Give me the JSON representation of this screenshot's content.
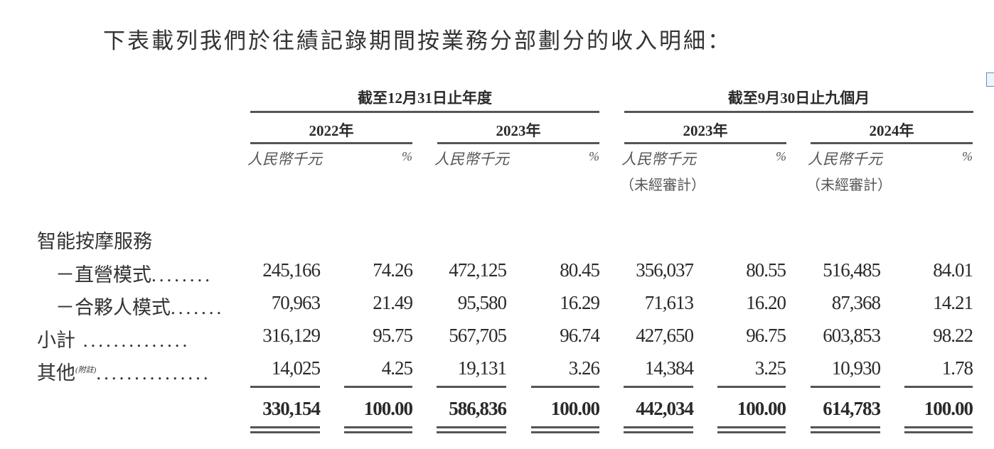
{
  "title": "下表載列我們於往績記錄期間按業務分部劃分的收入明細：",
  "groups": [
    "截至12月31日止年度",
    "截至9月30日止九個月"
  ],
  "years": [
    "2022年",
    "2023年",
    "2023年",
    "2024年"
  ],
  "unit_label": "人民幣千元",
  "pct_label": "%",
  "unaudited_label": "（未經審計）",
  "section_label": "智能按摩服務",
  "rows": [
    {
      "label": "－直營模式",
      "values": [
        "245,166",
        "74.26",
        "472,125",
        "80.45",
        "356,037",
        "80.55",
        "516,485",
        "84.01"
      ]
    },
    {
      "label": "－合夥人模式",
      "values": [
        "70,963",
        "21.49",
        "95,580",
        "16.29",
        "71,613",
        "16.20",
        "87,368",
        "14.21"
      ]
    },
    {
      "label": "小計",
      "values": [
        "316,129",
        "95.75",
        "567,705",
        "96.74",
        "427,650",
        "96.75",
        "603,853",
        "98.22"
      ]
    },
    {
      "label": "其他",
      "note": "(附註)",
      "values": [
        "14,025",
        "4.25",
        "19,131",
        "3.26",
        "14,384",
        "3.25",
        "10,930",
        "1.78"
      ]
    }
  ],
  "total": [
    "330,154",
    "100.00",
    "586,836",
    "100.00",
    "442,034",
    "100.00",
    "614,783",
    "100.00"
  ]
}
